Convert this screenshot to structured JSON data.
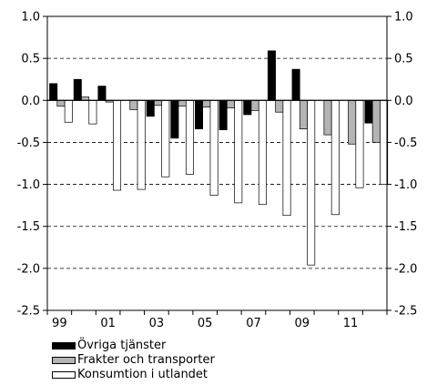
{
  "chart_data": {
    "type": "bar",
    "ylim": [
      -2.5,
      1.0
    ],
    "yticks": [
      "1.0",
      "0.5",
      "0.0",
      "-0.5",
      "-1.0",
      "-1.5",
      "-2.0",
      "-2.5"
    ],
    "ytick_values": [
      1.0,
      0.5,
      0.0,
      -0.5,
      -1.0,
      -1.5,
      -2.0,
      -2.5
    ],
    "xtick_labels": [
      "99",
      "01",
      "03",
      "05",
      "07",
      "09",
      "11"
    ],
    "categories": [
      "1999",
      "2000",
      "2001",
      "2002",
      "2003",
      "2004",
      "2005",
      "2006",
      "2007",
      "2008",
      "2009",
      "2010",
      "2011",
      "2012"
    ],
    "series": [
      {
        "name": "Övriga tjänster",
        "color": "#000000",
        "values": [
          0.2,
          0.25,
          0.17,
          0.0,
          -0.19,
          -0.45,
          -0.34,
          -0.35,
          -0.17,
          0.59,
          0.37,
          0.0,
          0.0,
          -0.27
        ]
      },
      {
        "name": "Frakter och transporter",
        "color": "#b4b4b4",
        "values": [
          -0.07,
          0.04,
          -0.02,
          -0.11,
          -0.06,
          -0.07,
          -0.08,
          -0.09,
          -0.12,
          -0.14,
          -0.34,
          -0.41,
          -0.52,
          -0.5
        ]
      },
      {
        "name": "Konsumtion i utlandet",
        "color": "#ffffff",
        "values": [
          -0.26,
          -0.28,
          -1.07,
          -1.06,
          -0.91,
          -0.88,
          -1.13,
          -1.22,
          -1.24,
          -1.37,
          -1.96,
          -1.36,
          -1.04,
          -1.0
        ]
      }
    ],
    "grid": "horizontal-dashed",
    "legend_position": "bottom-left"
  }
}
